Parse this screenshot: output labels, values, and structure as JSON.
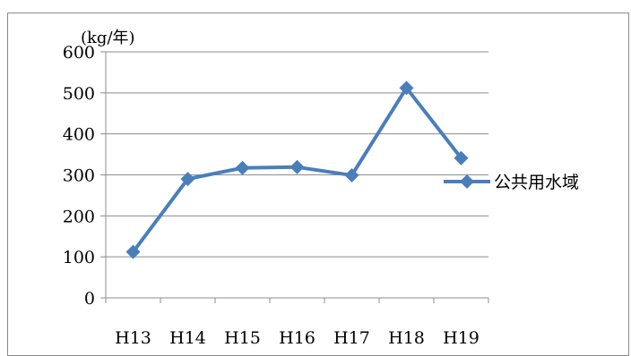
{
  "chart_data": {
    "type": "line",
    "unit_label": "(kg/年)",
    "categories": [
      "H13",
      "H14",
      "H15",
      "H16",
      "H17",
      "H18",
      "H19"
    ],
    "yticks": [
      "0",
      "100",
      "200",
      "300",
      "400",
      "500",
      "600"
    ],
    "ylim": [
      0,
      600
    ],
    "grid": true,
    "legend_position": "right",
    "series": [
      {
        "name": "公共用水域",
        "color": "#4a7ebb",
        "values": [
          112,
          290,
          317,
          319,
          299,
          512,
          341
        ]
      }
    ]
  }
}
